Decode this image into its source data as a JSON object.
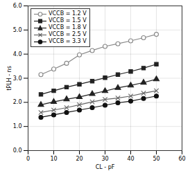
{
  "chart_data": {
    "type": "line",
    "xlabel": "CL - pF",
    "ylabel": "tPLH - ns",
    "x": [
      5,
      10,
      15,
      20,
      25,
      30,
      35,
      40,
      45,
      50
    ],
    "series": [
      {
        "name": "VCCB = 1.2 V",
        "color": "#888888",
        "marker": "open-circle",
        "values": [
          3.15,
          3.38,
          3.62,
          3.97,
          4.15,
          4.32,
          4.43,
          4.55,
          4.68,
          4.82
        ]
      },
      {
        "name": "VCCB = 1.5 V",
        "color": "#222222",
        "marker": "square",
        "values": [
          2.33,
          2.48,
          2.63,
          2.75,
          2.88,
          3.02,
          3.15,
          3.28,
          3.42,
          3.58
        ]
      },
      {
        "name": "VCCB = 1.8 V",
        "color": "#222222",
        "marker": "triangle",
        "values": [
          1.9,
          2.02,
          2.13,
          2.22,
          2.35,
          2.47,
          2.6,
          2.7,
          2.82,
          2.96
        ]
      },
      {
        "name": "VCCB = 2.5 V",
        "color": "#666666",
        "marker": "x",
        "values": [
          1.58,
          1.68,
          1.78,
          1.9,
          2.02,
          2.12,
          2.18,
          2.26,
          2.38,
          2.48
        ]
      },
      {
        "name": "VCCB = 3.3 V",
        "color": "#111111",
        "marker": "circle",
        "values": [
          1.38,
          1.48,
          1.58,
          1.68,
          1.78,
          1.88,
          1.98,
          2.05,
          2.16,
          2.26
        ]
      }
    ],
    "xlim": [
      0,
      60
    ],
    "ylim": [
      0,
      6
    ],
    "xticks": [
      0,
      10,
      20,
      30,
      40,
      50,
      60
    ],
    "yticks": [
      0,
      1,
      2,
      3,
      4,
      5,
      6
    ],
    "grid": true,
    "legend": "upper left"
  }
}
